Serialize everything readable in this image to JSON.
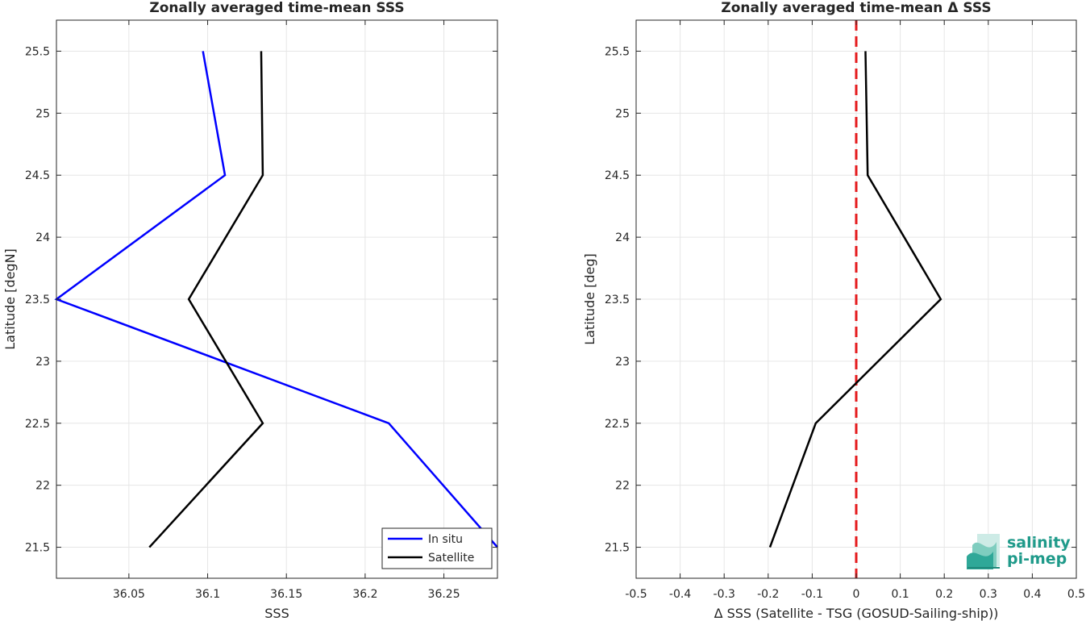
{
  "chart_data": [
    {
      "type": "line",
      "title": "Zonally averaged time-mean SSS",
      "xlabel": "SSS",
      "ylabel": "Latitude [degN]",
      "xlim": [
        36.004,
        36.284
      ],
      "ylim": [
        21.25,
        25.75
      ],
      "xticks": [
        36.05,
        36.1,
        36.15,
        36.2,
        36.25
      ],
      "xtick_labels": [
        "36.05",
        "36.1",
        "36.15",
        "36.2",
        "36.25"
      ],
      "yticks": [
        21.5,
        22,
        22.5,
        23,
        23.5,
        24,
        24.5,
        25,
        25.5
      ],
      "ytick_labels": [
        "21.5",
        "22",
        "22.5",
        "23",
        "23.5",
        "24",
        "24.5",
        "25",
        "25.5"
      ],
      "grid": true,
      "legend": "bottom-right",
      "series": [
        {
          "name": "In situ",
          "color": "#0000ff",
          "x": [
            36.284,
            36.215,
            36.004,
            36.111,
            36.097
          ],
          "y": [
            21.5,
            22.5,
            23.5,
            24.5,
            25.5
          ]
        },
        {
          "name": "Satellite",
          "color": "#000000",
          "x": [
            36.063,
            36.135,
            36.088,
            36.135,
            36.134
          ],
          "y": [
            21.5,
            22.5,
            23.5,
            24.5,
            25.5
          ]
        }
      ]
    },
    {
      "type": "line",
      "title": "Zonally averaged time-mean Δ SSS",
      "xlabel": "Δ SSS (Satellite - TSG (GOSUD-Sailing-ship))",
      "ylabel": "Latitude [deg]",
      "xlim": [
        -0.5,
        0.5
      ],
      "ylim": [
        21.25,
        25.75
      ],
      "xticks": [
        -0.5,
        -0.4,
        -0.3,
        -0.2,
        -0.1,
        0,
        0.1,
        0.2,
        0.3,
        0.4,
        0.5
      ],
      "xtick_labels": [
        "-0.5",
        "-0.4",
        "-0.3",
        "-0.2",
        "-0.1",
        "0",
        "0.1",
        "0.2",
        "0.3",
        "0.4",
        "0.5"
      ],
      "yticks": [
        21.5,
        22,
        22.5,
        23,
        23.5,
        24,
        24.5,
        25,
        25.5
      ],
      "ytick_labels": [
        "21.5",
        "22",
        "22.5",
        "23",
        "23.5",
        "24",
        "24.5",
        "25",
        "25.5"
      ],
      "grid": true,
      "reference_line": {
        "x": 0,
        "color": "#e41a1c",
        "style": "dashed"
      },
      "series": [
        {
          "color": "#000000",
          "x": [
            -0.196,
            -0.092,
            0.192,
            0.026,
            0.021
          ],
          "y": [
            21.5,
            22.5,
            23.5,
            24.5,
            25.5
          ]
        }
      ]
    }
  ],
  "logo": {
    "line1": "salinity",
    "line2": "pi-mep",
    "color": "#1f9a8a"
  }
}
